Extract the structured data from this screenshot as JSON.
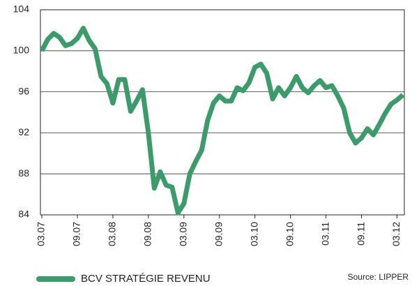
{
  "chart_data": {
    "type": "line",
    "categories": [
      "03.07",
      null,
      null,
      null,
      null,
      null,
      "09.07",
      null,
      null,
      null,
      null,
      null,
      "03.08",
      null,
      null,
      null,
      null,
      null,
      "09.08",
      null,
      null,
      null,
      null,
      null,
      "03.09",
      null,
      null,
      null,
      null,
      null,
      "09.09",
      null,
      null,
      null,
      null,
      null,
      "03.10",
      null,
      null,
      null,
      null,
      null,
      "09.10",
      null,
      null,
      null,
      null,
      null,
      "03.11",
      null,
      null,
      null,
      null,
      null,
      "09.11",
      null,
      null,
      null,
      null,
      null,
      "03.12",
      null
    ],
    "series": [
      {
        "name": "BCV STRATÉGIE REVENU",
        "color": "#3d9b6b",
        "values": [
          100,
          101.1,
          101.7,
          101.3,
          100.5,
          100.7,
          101.2,
          102.2,
          101,
          100.2,
          97.5,
          96.8,
          94.9,
          97.2,
          97.2,
          94.1,
          95.1,
          96.2,
          92,
          86.6,
          88.2,
          86.9,
          86.7,
          84.2,
          85.1,
          88,
          89.2,
          90.3,
          93.2,
          94.9,
          95.6,
          95.1,
          95.1,
          96.4,
          96.1,
          96.9,
          98.4,
          98.7,
          97.8,
          95.3,
          96.4,
          95.6,
          96.4,
          97.5,
          96.4,
          95.9,
          96.6,
          97.1,
          96.4,
          96.6,
          95.6,
          94.4,
          92,
          91,
          91.5,
          92.4,
          91.8,
          92.8,
          93.9,
          94.8,
          95.2,
          95.7
        ]
      }
    ],
    "ylim": [
      84,
      104
    ],
    "yticks": [
      84,
      88,
      92,
      96,
      100,
      104
    ],
    "grid": true,
    "source": "Source: LIPPER"
  }
}
